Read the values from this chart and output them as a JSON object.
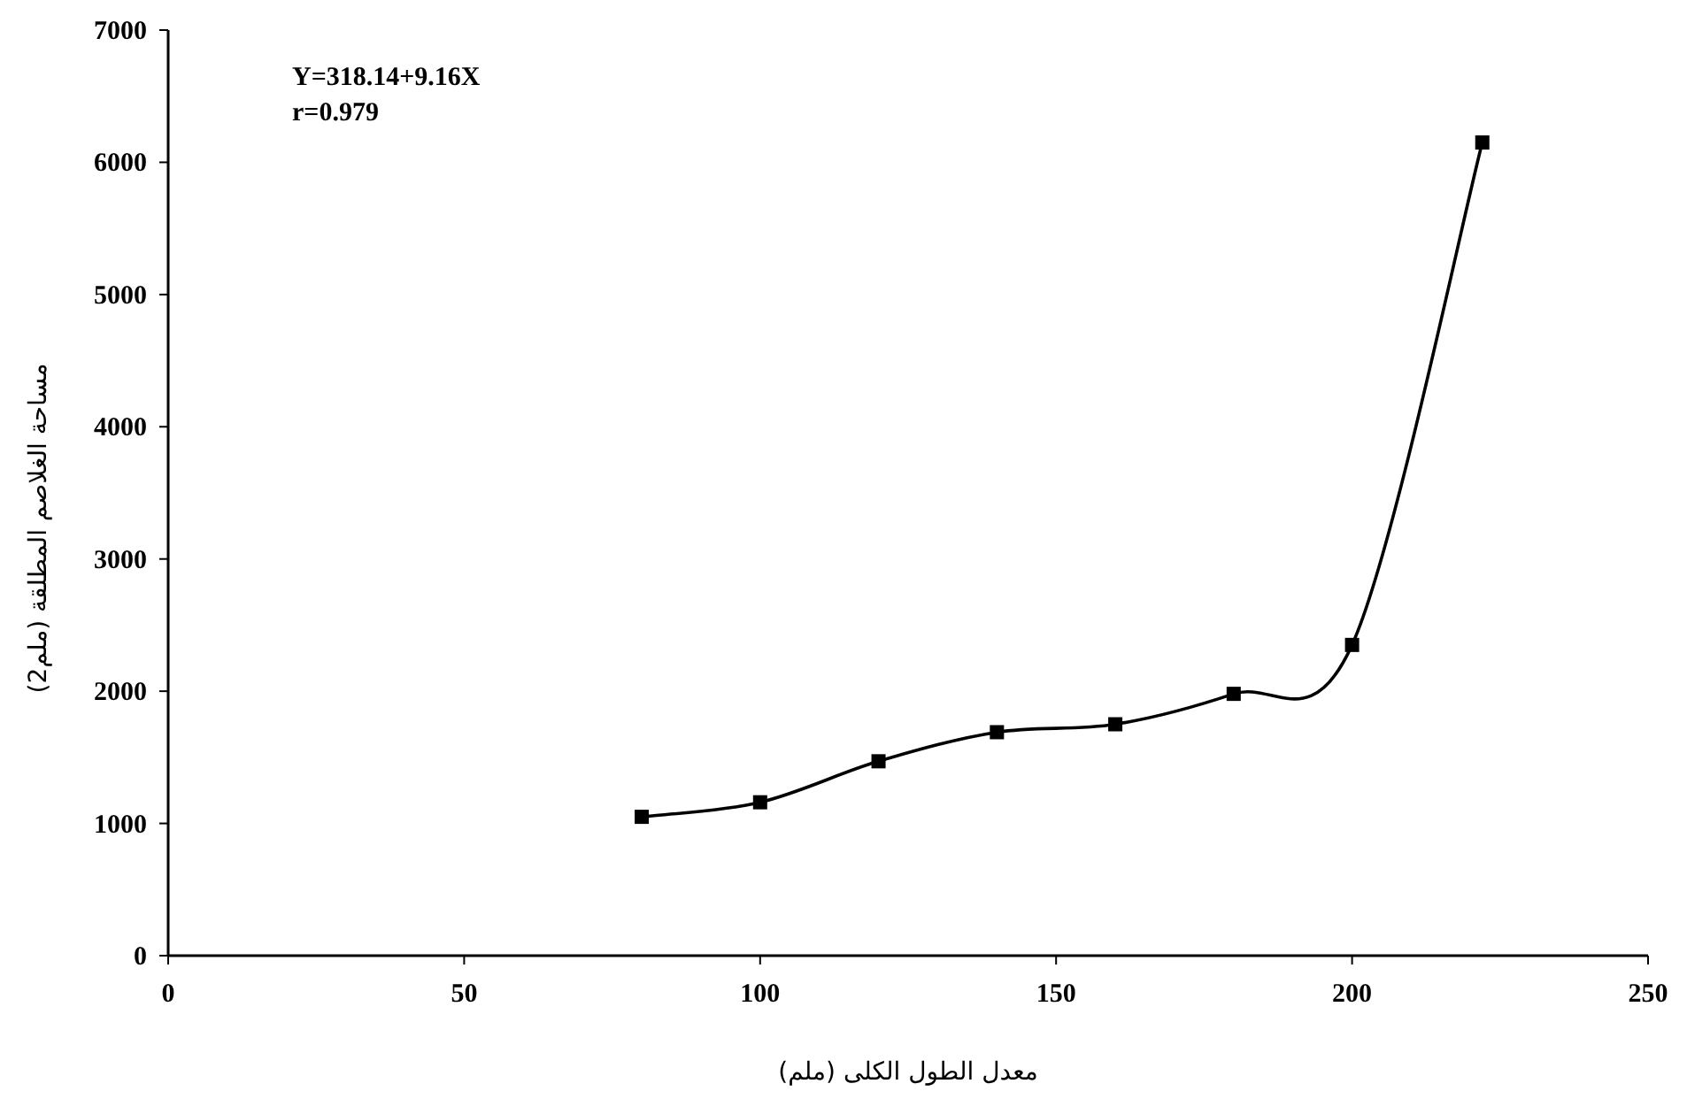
{
  "chart_data": {
    "type": "line",
    "xlabel": "معدل الطول الكلى (ملم)",
    "ylabel": "مساحة الغلاصم المطلقة (ملم2)",
    "annotations": [
      "Y=318.14+9.16X",
      "r=0.979"
    ],
    "x": [
      80,
      100,
      120,
      140,
      160,
      180,
      200,
      222
    ],
    "series": [
      {
        "color": "#000000",
        "values": [
          1050,
          1160,
          1470,
          1690,
          1750,
          1980,
          2350,
          6150
        ]
      }
    ],
    "xlim": [
      0,
      250
    ],
    "xticks": [
      0,
      50,
      100,
      150,
      200,
      250
    ],
    "ylim": [
      0,
      7000
    ],
    "yticks": [
      0,
      1000,
      2000,
      3000,
      4000,
      5000,
      6000,
      7000
    ],
    "marker": "square",
    "line_style": "solid",
    "grid": false
  }
}
